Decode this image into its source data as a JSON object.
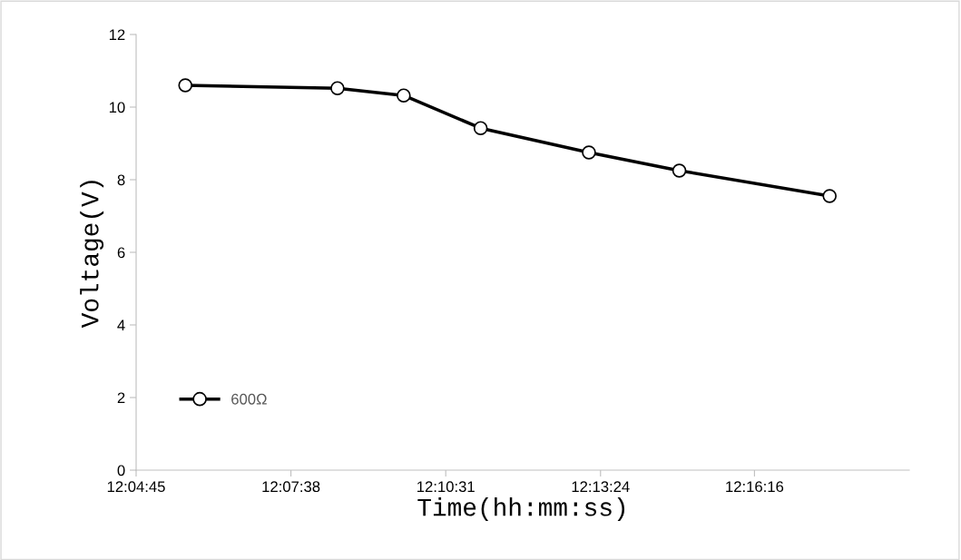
{
  "chart_data": {
    "type": "line",
    "xlabel": "Time(hh:mm:ss)",
    "ylabel": "Voltage(V)",
    "x": [
      12.09444,
      12.14167,
      12.16222,
      12.18611,
      12.21972,
      12.24778,
      12.29444
    ],
    "series": [
      {
        "name": "600Ω",
        "color": "#000000",
        "values": [
          10.6,
          10.52,
          10.32,
          9.42,
          8.75,
          8.25,
          7.55
        ]
      }
    ],
    "xlim": [
      12.079167,
      12.319167
    ],
    "xticks": [
      {
        "value": 12.079167,
        "label": "12:04:45"
      },
      {
        "value": 12.127222,
        "label": "12:07:38"
      },
      {
        "value": 12.175278,
        "label": "12:10:31"
      },
      {
        "value": 12.223333,
        "label": "12:13:24"
      },
      {
        "value": 12.271111,
        "label": "12:16:16"
      }
    ],
    "ylim": [
      0,
      12
    ],
    "yticks": [
      0,
      2,
      4,
      6,
      8,
      10,
      12
    ],
    "grid": false,
    "legend": "bottom left",
    "marker": "circle",
    "line_style": "solid"
  }
}
